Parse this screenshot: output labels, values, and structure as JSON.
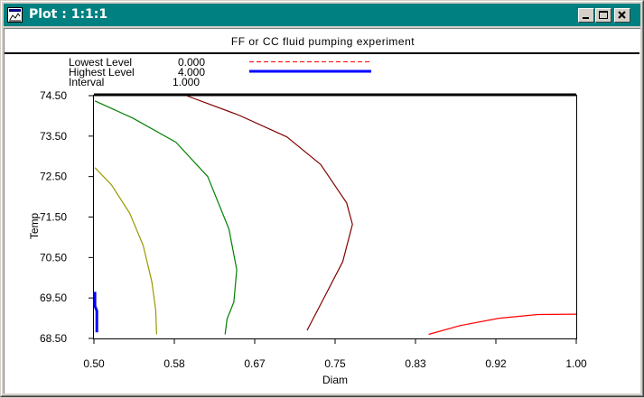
{
  "window": {
    "title": "Plot : 1:1:1",
    "buttons": {
      "minimize": "minimize",
      "maximize": "maximize",
      "close": "close"
    }
  },
  "plot": {
    "title": "FF or CC fluid pumping experiment",
    "legend": {
      "lowest_label": "Lowest  Level",
      "lowest_value": "0.000",
      "highest_label": "Highest  Level",
      "highest_value": "4.000",
      "interval_label": "Interval",
      "interval_value": "1.000",
      "lowest_color": "#ff0000",
      "highest_color": "#0000ff"
    }
  },
  "chart_data": {
    "type": "contour",
    "title": "FF or CC fluid pumping experiment",
    "xlabel": "Diam",
    "ylabel": "Temp",
    "xlim": [
      0.5,
      1.0
    ],
    "ylim": [
      68.5,
      74.5
    ],
    "x_ticks": [
      "0.50",
      "0.58",
      "0.67",
      "0.75",
      "0.83",
      "0.92",
      "1.00"
    ],
    "y_ticks": [
      "74.50",
      "73.50",
      "72.50",
      "71.50",
      "70.50",
      "69.50",
      "68.50"
    ],
    "levels": {
      "lowest": 0.0,
      "highest": 4.0,
      "interval": 1.0
    },
    "contours": [
      {
        "color": "#0000ff",
        "points": [
          [
            0.501,
            69.65
          ],
          [
            0.501,
            69.3
          ],
          [
            0.503,
            69.18
          ],
          [
            0.503,
            68.65
          ]
        ]
      },
      {
        "color": "#999900",
        "points": [
          [
            0.501,
            72.72
          ],
          [
            0.518,
            72.3
          ],
          [
            0.537,
            71.6
          ],
          [
            0.551,
            70.8
          ],
          [
            0.56,
            69.9
          ],
          [
            0.564,
            69.2
          ],
          [
            0.565,
            68.6
          ]
        ]
      },
      {
        "color": "#008000",
        "points": [
          [
            0.501,
            74.37
          ],
          [
            0.54,
            73.95
          ],
          [
            0.585,
            73.35
          ],
          [
            0.618,
            72.5
          ],
          [
            0.64,
            71.2
          ],
          [
            0.648,
            70.2
          ],
          [
            0.645,
            69.4
          ],
          [
            0.638,
            68.98
          ],
          [
            0.636,
            68.6
          ]
        ]
      },
      {
        "color": "#800000",
        "points": [
          [
            0.596,
            74.5
          ],
          [
            0.65,
            74.02
          ],
          [
            0.7,
            73.48
          ],
          [
            0.735,
            72.8
          ],
          [
            0.762,
            71.85
          ],
          [
            0.768,
            71.32
          ],
          [
            0.758,
            70.4
          ],
          [
            0.74,
            69.57
          ],
          [
            0.721,
            68.7
          ]
        ]
      },
      {
        "color": "#ff0000",
        "points": [
          [
            0.847,
            68.6
          ],
          [
            0.88,
            68.82
          ],
          [
            0.92,
            69.0
          ],
          [
            0.96,
            69.09
          ],
          [
            1.0,
            69.1
          ]
        ]
      }
    ]
  }
}
